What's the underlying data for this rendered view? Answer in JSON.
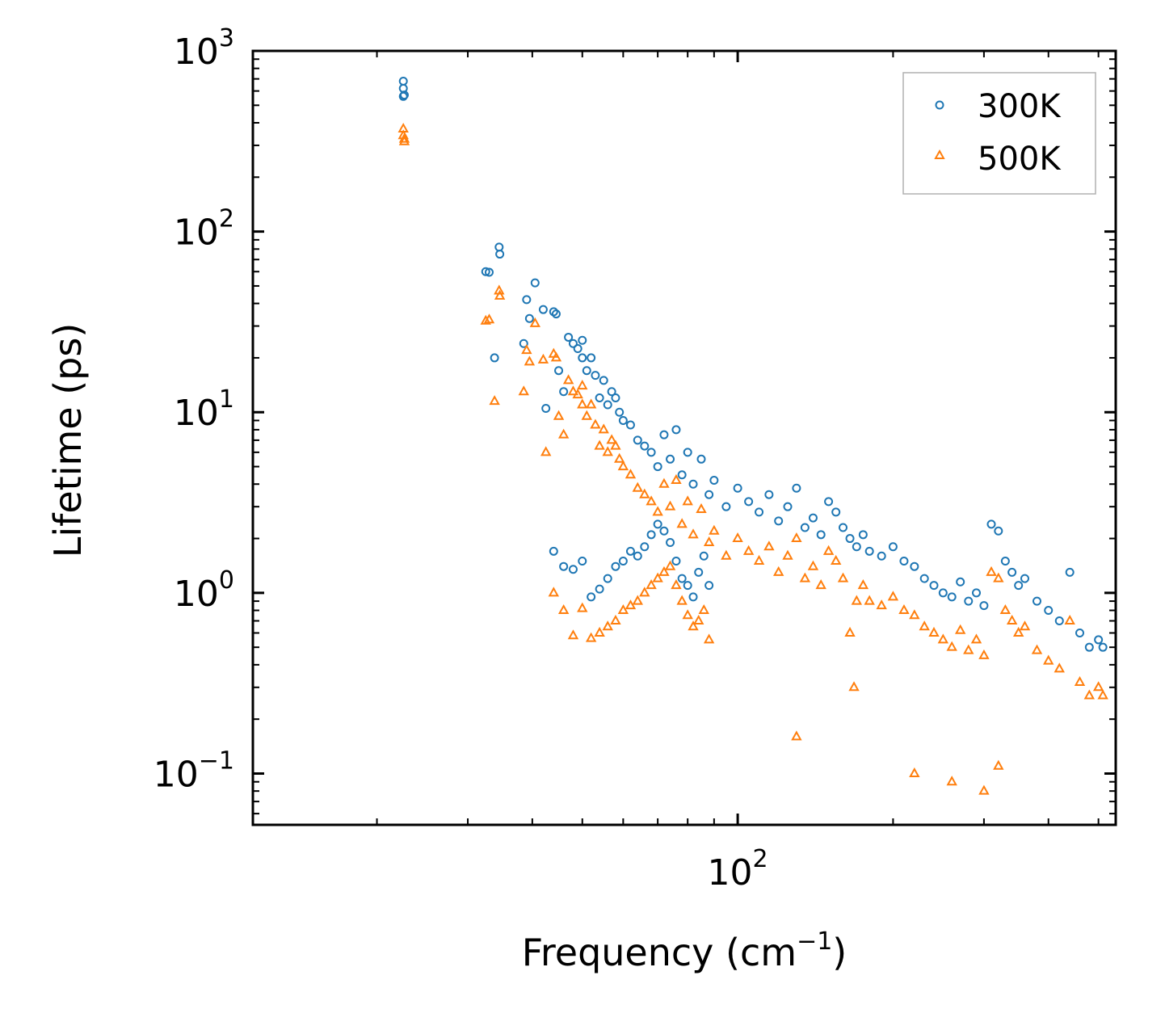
{
  "chart_data": {
    "type": "scatter",
    "xscale": "log",
    "yscale": "log",
    "xlim": [
      11.5,
      540
    ],
    "ylim": [
      0.052,
      1000
    ],
    "xlabel": "Frequency (cm",
    "xlabel_exp": "−1",
    "xlabel_suffix": ")",
    "ylabel": "Lifetime (ps)",
    "x_ticks": [
      {
        "base": "10",
        "exp": "2",
        "value": 100
      }
    ],
    "y_ticks": [
      {
        "base": "10",
        "exp": "3",
        "value": 1000
      },
      {
        "base": "10",
        "exp": "2",
        "value": 100
      },
      {
        "base": "10",
        "exp": "1",
        "value": 10
      },
      {
        "base": "10",
        "exp": "0",
        "value": 1
      },
      {
        "base": "10",
        "exp": "−1",
        "value": 0.1
      }
    ],
    "legend_position": "top-right",
    "series": [
      {
        "name": "300K",
        "marker": "circle",
        "color": "#1f77b4",
        "points": [
          [
            22.5,
            680
          ],
          [
            22.5,
            620
          ],
          [
            22.5,
            560
          ],
          [
            22.6,
            570
          ],
          [
            32.5,
            60
          ],
          [
            33,
            59.5
          ],
          [
            33.8,
            20
          ],
          [
            34.5,
            82
          ],
          [
            34.6,
            75
          ],
          [
            38.5,
            24
          ],
          [
            39,
            42
          ],
          [
            39.5,
            33
          ],
          [
            40.5,
            52
          ],
          [
            42,
            37
          ],
          [
            42.5,
            10.5
          ],
          [
            44,
            36
          ],
          [
            44.5,
            35
          ],
          [
            45,
            17
          ],
          [
            46,
            13
          ],
          [
            47,
            26
          ],
          [
            48,
            24
          ],
          [
            49,
            22.5
          ],
          [
            50,
            25
          ],
          [
            50,
            20
          ],
          [
            51,
            17
          ],
          [
            52,
            20
          ],
          [
            53,
            16
          ],
          [
            54,
            12
          ],
          [
            55,
            15
          ],
          [
            56,
            11
          ],
          [
            57,
            13
          ],
          [
            58,
            12
          ],
          [
            59,
            10
          ],
          [
            60,
            9
          ],
          [
            62,
            8.5
          ],
          [
            64,
            7
          ],
          [
            66,
            6.5
          ],
          [
            68,
            6
          ],
          [
            70,
            5
          ],
          [
            72,
            7.5
          ],
          [
            74,
            5.5
          ],
          [
            76,
            8
          ],
          [
            78,
            4.5
          ],
          [
            80,
            6
          ],
          [
            82,
            4
          ],
          [
            85,
            5.5
          ],
          [
            88,
            3.5
          ],
          [
            90,
            4.2
          ],
          [
            95,
            3
          ],
          [
            100,
            3.8
          ],
          [
            105,
            3.2
          ],
          [
            110,
            2.8
          ],
          [
            115,
            3.5
          ],
          [
            120,
            2.5
          ],
          [
            125,
            3
          ],
          [
            130,
            3.8
          ],
          [
            135,
            2.3
          ],
          [
            140,
            2.6
          ],
          [
            145,
            2.1
          ],
          [
            150,
            3.2
          ],
          [
            155,
            2.8
          ],
          [
            160,
            2.3
          ],
          [
            165,
            2
          ],
          [
            170,
            1.8
          ],
          [
            175,
            2.1
          ],
          [
            180,
            1.7
          ],
          [
            190,
            1.6
          ],
          [
            200,
            1.8
          ],
          [
            210,
            1.5
          ],
          [
            220,
            1.4
          ],
          [
            230,
            1.2
          ],
          [
            240,
            1.1
          ],
          [
            250,
            1
          ],
          [
            260,
            0.95
          ],
          [
            270,
            1.15
          ],
          [
            280,
            0.9
          ],
          [
            290,
            1
          ],
          [
            300,
            0.85
          ],
          [
            310,
            2.4
          ],
          [
            320,
            2.2
          ],
          [
            330,
            1.5
          ],
          [
            340,
            1.3
          ],
          [
            350,
            1.1
          ],
          [
            360,
            1.2
          ],
          [
            380,
            0.9
          ],
          [
            400,
            0.8
          ],
          [
            420,
            0.7
          ],
          [
            440,
            1.3
          ],
          [
            460,
            0.6
          ],
          [
            480,
            0.5
          ],
          [
            500,
            0.55
          ],
          [
            510,
            0.5
          ],
          [
            44,
            1.7
          ],
          [
            46,
            1.4
          ],
          [
            48,
            1.35
          ],
          [
            50,
            1.5
          ],
          [
            52,
            0.95
          ],
          [
            54,
            1.05
          ],
          [
            56,
            1.2
          ],
          [
            58,
            1.4
          ],
          [
            60,
            1.5
          ],
          [
            62,
            1.7
          ],
          [
            64,
            1.6
          ],
          [
            66,
            1.8
          ],
          [
            68,
            2.1
          ],
          [
            70,
            2.4
          ],
          [
            72,
            2.2
          ],
          [
            74,
            1.9
          ],
          [
            76,
            1.5
          ],
          [
            78,
            1.2
          ],
          [
            80,
            1.1
          ],
          [
            82,
            0.95
          ],
          [
            84,
            1.3
          ],
          [
            86,
            1.6
          ],
          [
            88,
            1.1
          ]
        ]
      },
      {
        "name": "500K",
        "marker": "triangle",
        "color": "#ff7f0e",
        "points": [
          [
            22.5,
            370
          ],
          [
            22.5,
            340
          ],
          [
            22.6,
            325
          ],
          [
            22.6,
            315
          ],
          [
            32.5,
            32
          ],
          [
            33,
            32.5
          ],
          [
            33.8,
            11.5
          ],
          [
            34.5,
            47
          ],
          [
            34.6,
            44
          ],
          [
            38.5,
            13
          ],
          [
            39,
            22
          ],
          [
            39.5,
            19
          ],
          [
            40.5,
            31
          ],
          [
            42,
            19.5
          ],
          [
            42.5,
            6
          ],
          [
            44,
            21
          ],
          [
            44.5,
            20
          ],
          [
            45,
            9.5
          ],
          [
            46,
            7.5
          ],
          [
            47,
            15
          ],
          [
            48,
            13
          ],
          [
            49,
            12.5
          ],
          [
            50,
            14
          ],
          [
            50,
            11
          ],
          [
            51,
            9.5
          ],
          [
            52,
            11
          ],
          [
            53,
            8.5
          ],
          [
            54,
            6.5
          ],
          [
            55,
            8
          ],
          [
            56,
            6
          ],
          [
            57,
            7
          ],
          [
            58,
            6.5
          ],
          [
            59,
            5.5
          ],
          [
            60,
            5
          ],
          [
            62,
            4.5
          ],
          [
            64,
            3.8
          ],
          [
            66,
            3.5
          ],
          [
            68,
            3.2
          ],
          [
            70,
            2.8
          ],
          [
            72,
            4
          ],
          [
            74,
            3
          ],
          [
            76,
            4.2
          ],
          [
            78,
            2.4
          ],
          [
            80,
            3.2
          ],
          [
            82,
            2.1
          ],
          [
            85,
            2.9
          ],
          [
            88,
            1.9
          ],
          [
            90,
            2.2
          ],
          [
            95,
            1.6
          ],
          [
            100,
            2
          ],
          [
            105,
            1.7
          ],
          [
            110,
            1.5
          ],
          [
            115,
            1.8
          ],
          [
            120,
            1.3
          ],
          [
            125,
            1.6
          ],
          [
            130,
            2
          ],
          [
            135,
            1.2
          ],
          [
            140,
            1.4
          ],
          [
            145,
            1.1
          ],
          [
            150,
            1.7
          ],
          [
            155,
            1.5
          ],
          [
            160,
            1.2
          ],
          [
            165,
            0.6
          ],
          [
            168,
            0.3
          ],
          [
            170,
            0.9
          ],
          [
            175,
            1.1
          ],
          [
            180,
            0.9
          ],
          [
            190,
            0.85
          ],
          [
            200,
            0.95
          ],
          [
            210,
            0.8
          ],
          [
            220,
            0.75
          ],
          [
            230,
            0.65
          ],
          [
            240,
            0.6
          ],
          [
            250,
            0.55
          ],
          [
            260,
            0.5
          ],
          [
            270,
            0.62
          ],
          [
            280,
            0.48
          ],
          [
            290,
            0.55
          ],
          [
            300,
            0.45
          ],
          [
            310,
            1.3
          ],
          [
            320,
            1.2
          ],
          [
            330,
            0.8
          ],
          [
            340,
            0.7
          ],
          [
            350,
            0.6
          ],
          [
            360,
            0.65
          ],
          [
            380,
            0.48
          ],
          [
            400,
            0.42
          ],
          [
            420,
            0.38
          ],
          [
            440,
            0.7
          ],
          [
            460,
            0.32
          ],
          [
            480,
            0.27
          ],
          [
            500,
            0.3
          ],
          [
            510,
            0.27
          ],
          [
            130,
            0.16
          ],
          [
            220,
            0.1
          ],
          [
            260,
            0.09
          ],
          [
            300,
            0.08
          ],
          [
            320,
            0.11
          ],
          [
            44,
            1
          ],
          [
            46,
            0.8
          ],
          [
            48,
            0.58
          ],
          [
            50,
            0.82
          ],
          [
            52,
            0.56
          ],
          [
            54,
            0.6
          ],
          [
            56,
            0.65
          ],
          [
            58,
            0.7
          ],
          [
            60,
            0.8
          ],
          [
            62,
            0.85
          ],
          [
            64,
            0.9
          ],
          [
            66,
            1
          ],
          [
            68,
            1.1
          ],
          [
            70,
            1.2
          ],
          [
            72,
            1.3
          ],
          [
            74,
            1.4
          ],
          [
            76,
            1.1
          ],
          [
            78,
            0.9
          ],
          [
            80,
            0.75
          ],
          [
            82,
            0.65
          ],
          [
            84,
            0.7
          ],
          [
            86,
            0.8
          ],
          [
            88,
            0.55
          ]
        ]
      }
    ]
  }
}
